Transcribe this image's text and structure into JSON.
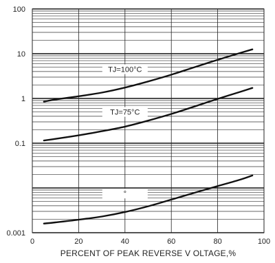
{
  "chart_data": {
    "type": "line",
    "title": "",
    "xlabel": "PERCENT OF PEAK REVERSE V OLTAGE,%",
    "ylabel": "",
    "xlim": [
      0,
      100
    ],
    "ylim": [
      0.001,
      100
    ],
    "yscale": "log",
    "x_ticks": [
      {
        "value": 0,
        "label": "0"
      },
      {
        "value": 20,
        "label": "20"
      },
      {
        "value": 40,
        "label": "40"
      },
      {
        "value": 60,
        "label": "60"
      },
      {
        "value": 80,
        "label": "80"
      },
      {
        "value": 100,
        "label": "100"
      }
    ],
    "y_ticks": [
      {
        "value": 0.001,
        "label": "0.001"
      },
      {
        "value": 0.1,
        "label": "0.1"
      },
      {
        "value": 1,
        "label": "1"
      },
      {
        "value": 10,
        "label": "10"
      },
      {
        "value": 100,
        "label": "100"
      }
    ],
    "grid": true,
    "series": [
      {
        "label": "TJ=100°C",
        "label_at": {
          "x": 40,
          "y": 4.5
        },
        "x": [
          5,
          10,
          20,
          30,
          40,
          50,
          60,
          70,
          80,
          90,
          95
        ],
        "y": [
          0.85,
          0.95,
          1.12,
          1.35,
          1.75,
          2.4,
          3.4,
          5.0,
          7.3,
          10.5,
          12.5
        ]
      },
      {
        "label": "TJ=75°C",
        "label_at": {
          "x": 40,
          "y": 0.5
        },
        "x": [
          5,
          10,
          20,
          30,
          40,
          50,
          60,
          70,
          80,
          90,
          95
        ],
        "y": [
          0.115,
          0.125,
          0.15,
          0.185,
          0.235,
          0.32,
          0.45,
          0.66,
          0.98,
          1.42,
          1.72
        ]
      },
      {
        "label": "°",
        "label_at": {
          "x": 40,
          "y": 0.0075
        },
        "x": [
          5,
          10,
          20,
          30,
          40,
          50,
          60,
          70,
          80,
          90,
          95
        ],
        "y": [
          0.0016,
          0.0017,
          0.00195,
          0.0023,
          0.0029,
          0.0039,
          0.0055,
          0.0078,
          0.011,
          0.0155,
          0.019
        ]
      }
    ]
  }
}
